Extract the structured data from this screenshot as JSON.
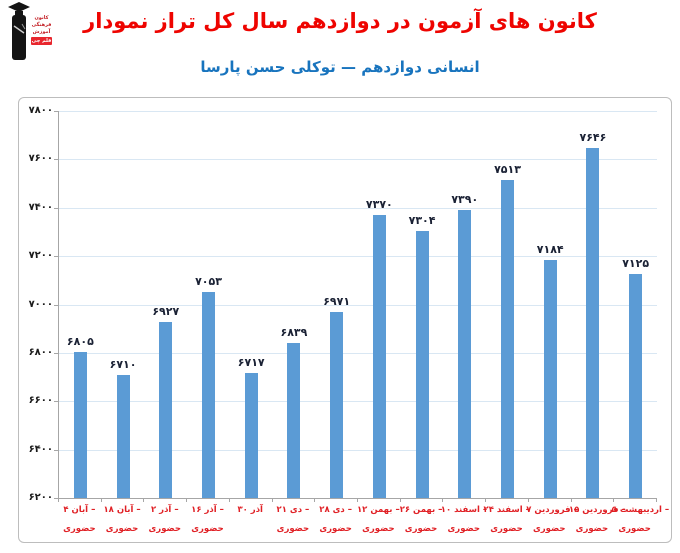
{
  "header": {
    "logo": {
      "text_lines": [
        "کانون",
        "فرهنگی",
        "آموزش"
      ],
      "badge": "قلم چی"
    },
    "title": "نمودار تراز کل سال دوازدهم در آزمون های کانون",
    "subtitle": "پارسا حسن توکلی — دوازدهم انسانی"
  },
  "chart_data": {
    "type": "bar",
    "title": "نمودار تراز کل سال دوازدهم در آزمون های کانون",
    "subtitle": "پارسا حسن توکلی — دوازدهم انسانی",
    "categories": [
      {
        "line1": "۴ آبان –",
        "line2": "حضوری"
      },
      {
        "line1": "۱۸ آبان –",
        "line2": "حضوری"
      },
      {
        "line1": "۲ آذر –",
        "line2": "حضوری"
      },
      {
        "line1": "۱۶ آذر –",
        "line2": "حضوری"
      },
      {
        "line1": "۳۰ آذر",
        "line2": ""
      },
      {
        "line1": "۲۱ دی –",
        "line2": "حضوری"
      },
      {
        "line1": "۲۸ دی –",
        "line2": "حضوری"
      },
      {
        "line1": "۱۲ بهمن –",
        "line2": "حضوری"
      },
      {
        "line1": "۲۶ بهمن –",
        "line2": "حضوری"
      },
      {
        "line1": "۱۰ اسفند –",
        "line2": "حضوری"
      },
      {
        "line1": "۲۴ اسفند –",
        "line2": "حضوری"
      },
      {
        "line1": "۷ فروردین –",
        "line2": "حضوری"
      },
      {
        "line1": "۱۵ فروردین –",
        "line2": "حضوری"
      },
      {
        "line1": "۵ اردیبهشت –",
        "line2": "حضوری"
      }
    ],
    "values": [
      6805,
      6710,
      6927,
      7053,
      6717,
      6839,
      6971,
      7370,
      7304,
      7390,
      7513,
      7184,
      7646,
      7125
    ],
    "value_labels": [
      "۶۸۰۵",
      "۶۷۱۰",
      "۶۹۲۷",
      "۷۰۵۳",
      "۶۷۱۷",
      "۶۸۳۹",
      "۶۹۷۱",
      "۷۳۷۰",
      "۷۳۰۴",
      "۷۳۹۰",
      "۷۵۱۳",
      "۷۱۸۴",
      "۷۶۴۶",
      "۷۱۲۵"
    ],
    "ylim": [
      6200,
      7800
    ],
    "y_step": 200,
    "y_tick_labels_top_to_bottom": [
      "۷۸۰۰",
      "۷۶۰۰",
      "۷۴۰۰",
      "۷۲۰۰",
      "۷۰۰۰",
      "۶۸۰۰",
      "۶۶۰۰",
      "۶۴۰۰",
      "۶۲۰۰"
    ],
    "grid": "horizontal",
    "legend": "none",
    "bar_color": "#5B9BD5"
  },
  "colors": {
    "title_red": "#EE0400",
    "subtitle_blue": "#1874BE",
    "xlabel_red": "#E02025",
    "bar_blue": "#5B9BD5",
    "gridline": "#D9E7F3",
    "axis_gray": "#A6A6A6",
    "logo_red": "#E8262D"
  }
}
